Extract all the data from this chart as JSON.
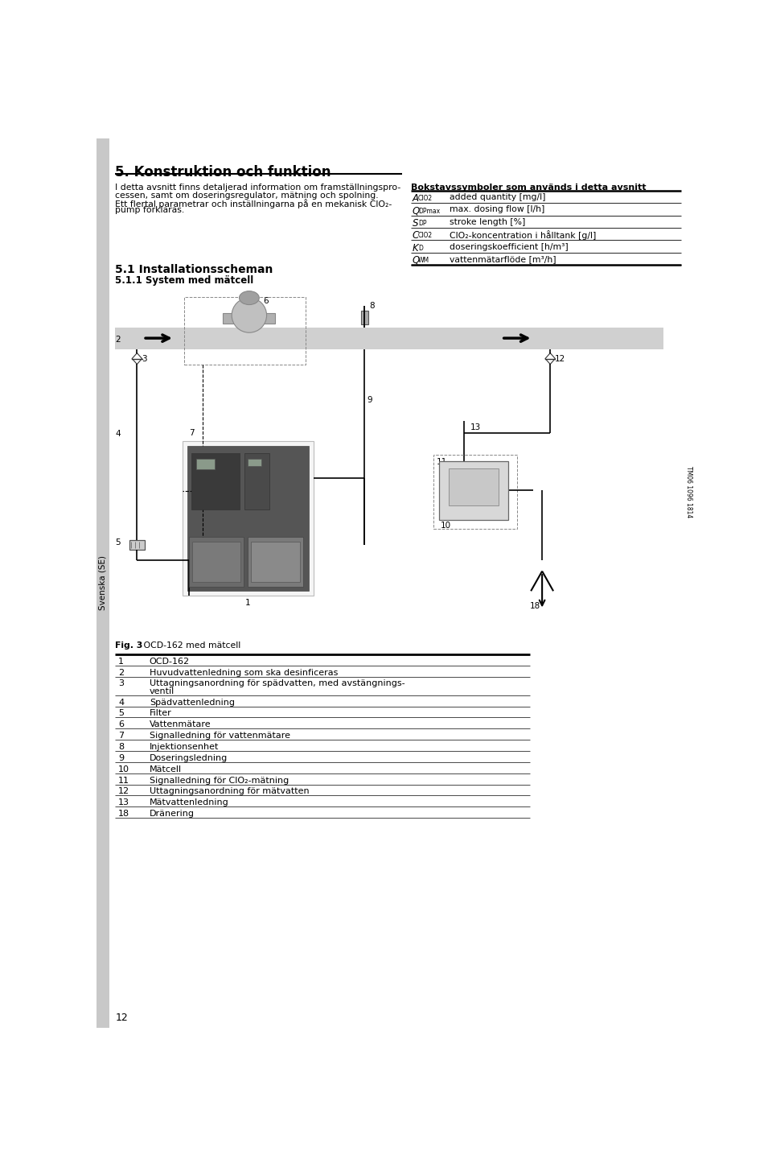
{
  "title": "5. Konstruktion och funktion",
  "sidebar_text": "Svenska (SE)",
  "intro_text_line1": "I detta avsnitt finns detaljerad information om framställningspro-",
  "intro_text_line2": "cessen, samt om doseringsregulator, mätning och spolning.",
  "intro_text_line3": "Ett flertal parametrar och inställningarna på en mekanisk ClO₂-",
  "intro_text_line4": "pump förklaras.",
  "table_title": "Bokstavssymboler som används i detta avsnitt",
  "table_rows": [
    {
      "symbol_main": "A",
      "symbol_sub": "ClO2",
      "desc": "added quantity [mg/l]"
    },
    {
      "symbol_main": "Q",
      "symbol_sub": "DPmax",
      "desc": "max. dosing flow [l/h]"
    },
    {
      "symbol_main": "S",
      "symbol_sub": "DP",
      "desc": "stroke length [%]"
    },
    {
      "symbol_main": "C",
      "symbol_sub": "ClO2",
      "desc": "ClO₂-koncentration i hålltank [g/l]"
    },
    {
      "symbol_main": "K",
      "symbol_sub": "D",
      "desc": "doseringskoefficient [h/m³]"
    },
    {
      "symbol_main": "Q",
      "symbol_sub": "WM",
      "desc": "vattenmätarflöde [m³/h]"
    }
  ],
  "section_51": "5.1 Installationsscheman",
  "section_511": "5.1.1 System med mätcell",
  "fig_caption_bold": "Fig. 3",
  "fig_caption_rest": "   OCD-162 med mätcell",
  "component_list": [
    {
      "num": "1",
      "desc": "OCD-162"
    },
    {
      "num": "2",
      "desc": "Huvudvattenledning som ska desinficeras"
    },
    {
      "num": "3",
      "desc": "Uttagningsanordning för spädvatten, med avstängnings-",
      "desc2": "ventil"
    },
    {
      "num": "4",
      "desc": "Spädvattenledning"
    },
    {
      "num": "5",
      "desc": "Filter"
    },
    {
      "num": "6",
      "desc": "Vattenmätare"
    },
    {
      "num": "7",
      "desc": "Signalledning för vattenmätare"
    },
    {
      "num": "8",
      "desc": "Injektionsenhet"
    },
    {
      "num": "9",
      "desc": "Doseringsledning"
    },
    {
      "num": "10",
      "desc": "Mätcell"
    },
    {
      "num": "11",
      "desc": "Signalledning för ClO₂-mätning"
    },
    {
      "num": "12",
      "desc": "Uttagningsanordning för mätvatten"
    },
    {
      "num": "13",
      "desc": "Mätvattenledning"
    },
    {
      "num": "18",
      "desc": "Dränering"
    }
  ],
  "page_number": "12",
  "tm_text": "TM06 1096 1814",
  "bg_color": "#ffffff"
}
